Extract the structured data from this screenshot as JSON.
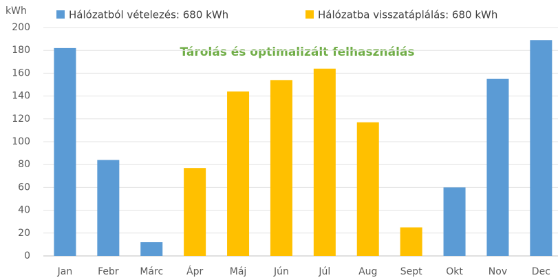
{
  "chart_data": {
    "type": "bar",
    "y_label": "kWh",
    "annotation": "Tárolás és optimalizált felhasználás",
    "categories": [
      "Jan",
      "Febr",
      "Márc",
      "Ápr",
      "Máj",
      "Jún",
      "Júl",
      "Aug",
      "Sept",
      "Okt",
      "Nov",
      "Dec"
    ],
    "series": [
      {
        "name": "Hálózatból vételezés: 680 kWh",
        "color": "#5b9bd5",
        "values": [
          182,
          84,
          12,
          null,
          null,
          null,
          null,
          null,
          null,
          60,
          155,
          189
        ]
      },
      {
        "name": "Hálózatba visszatáplálás: 680 kWh",
        "color": "#ffc000",
        "values": [
          null,
          null,
          null,
          77,
          144,
          154,
          164,
          117,
          25,
          null,
          null,
          null
        ]
      }
    ],
    "ylim": [
      0,
      200
    ],
    "yticks": [
      0,
      20,
      40,
      60,
      80,
      100,
      120,
      140,
      160,
      180,
      200
    ],
    "grid": true,
    "legend": "top"
  }
}
